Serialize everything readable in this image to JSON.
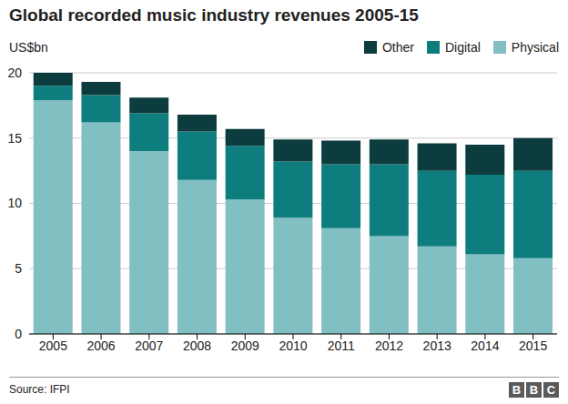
{
  "chart_data": {
    "type": "bar",
    "title": "Global recorded music industry revenues 2005-15",
    "y_label": "US$bn",
    "source": "Source: IFPI",
    "logo": "BBC",
    "stacked": true,
    "grid": true,
    "legend": "top-right",
    "categories": [
      "2005",
      "2006",
      "2007",
      "2008",
      "2009",
      "2010",
      "2011",
      "2012",
      "2013",
      "2014",
      "2015"
    ],
    "series": [
      {
        "name": "Physical",
        "color": "#82bfc2",
        "values": [
          17.9,
          16.2,
          14.0,
          11.8,
          10.3,
          8.9,
          8.1,
          7.5,
          6.7,
          6.1,
          5.8
        ]
      },
      {
        "name": "Digital",
        "color": "#0e7d7e",
        "values": [
          1.1,
          2.1,
          2.9,
          3.7,
          4.1,
          4.3,
          4.9,
          5.5,
          5.8,
          6.1,
          6.7
        ]
      },
      {
        "name": "Other",
        "color": "#0c3c3d",
        "values": [
          1.0,
          1.0,
          1.2,
          1.3,
          1.3,
          1.7,
          1.8,
          1.9,
          2.1,
          2.3,
          2.5
        ]
      }
    ],
    "ylim": [
      0,
      20
    ],
    "yticks": [
      0,
      5,
      10,
      15,
      20
    ]
  }
}
